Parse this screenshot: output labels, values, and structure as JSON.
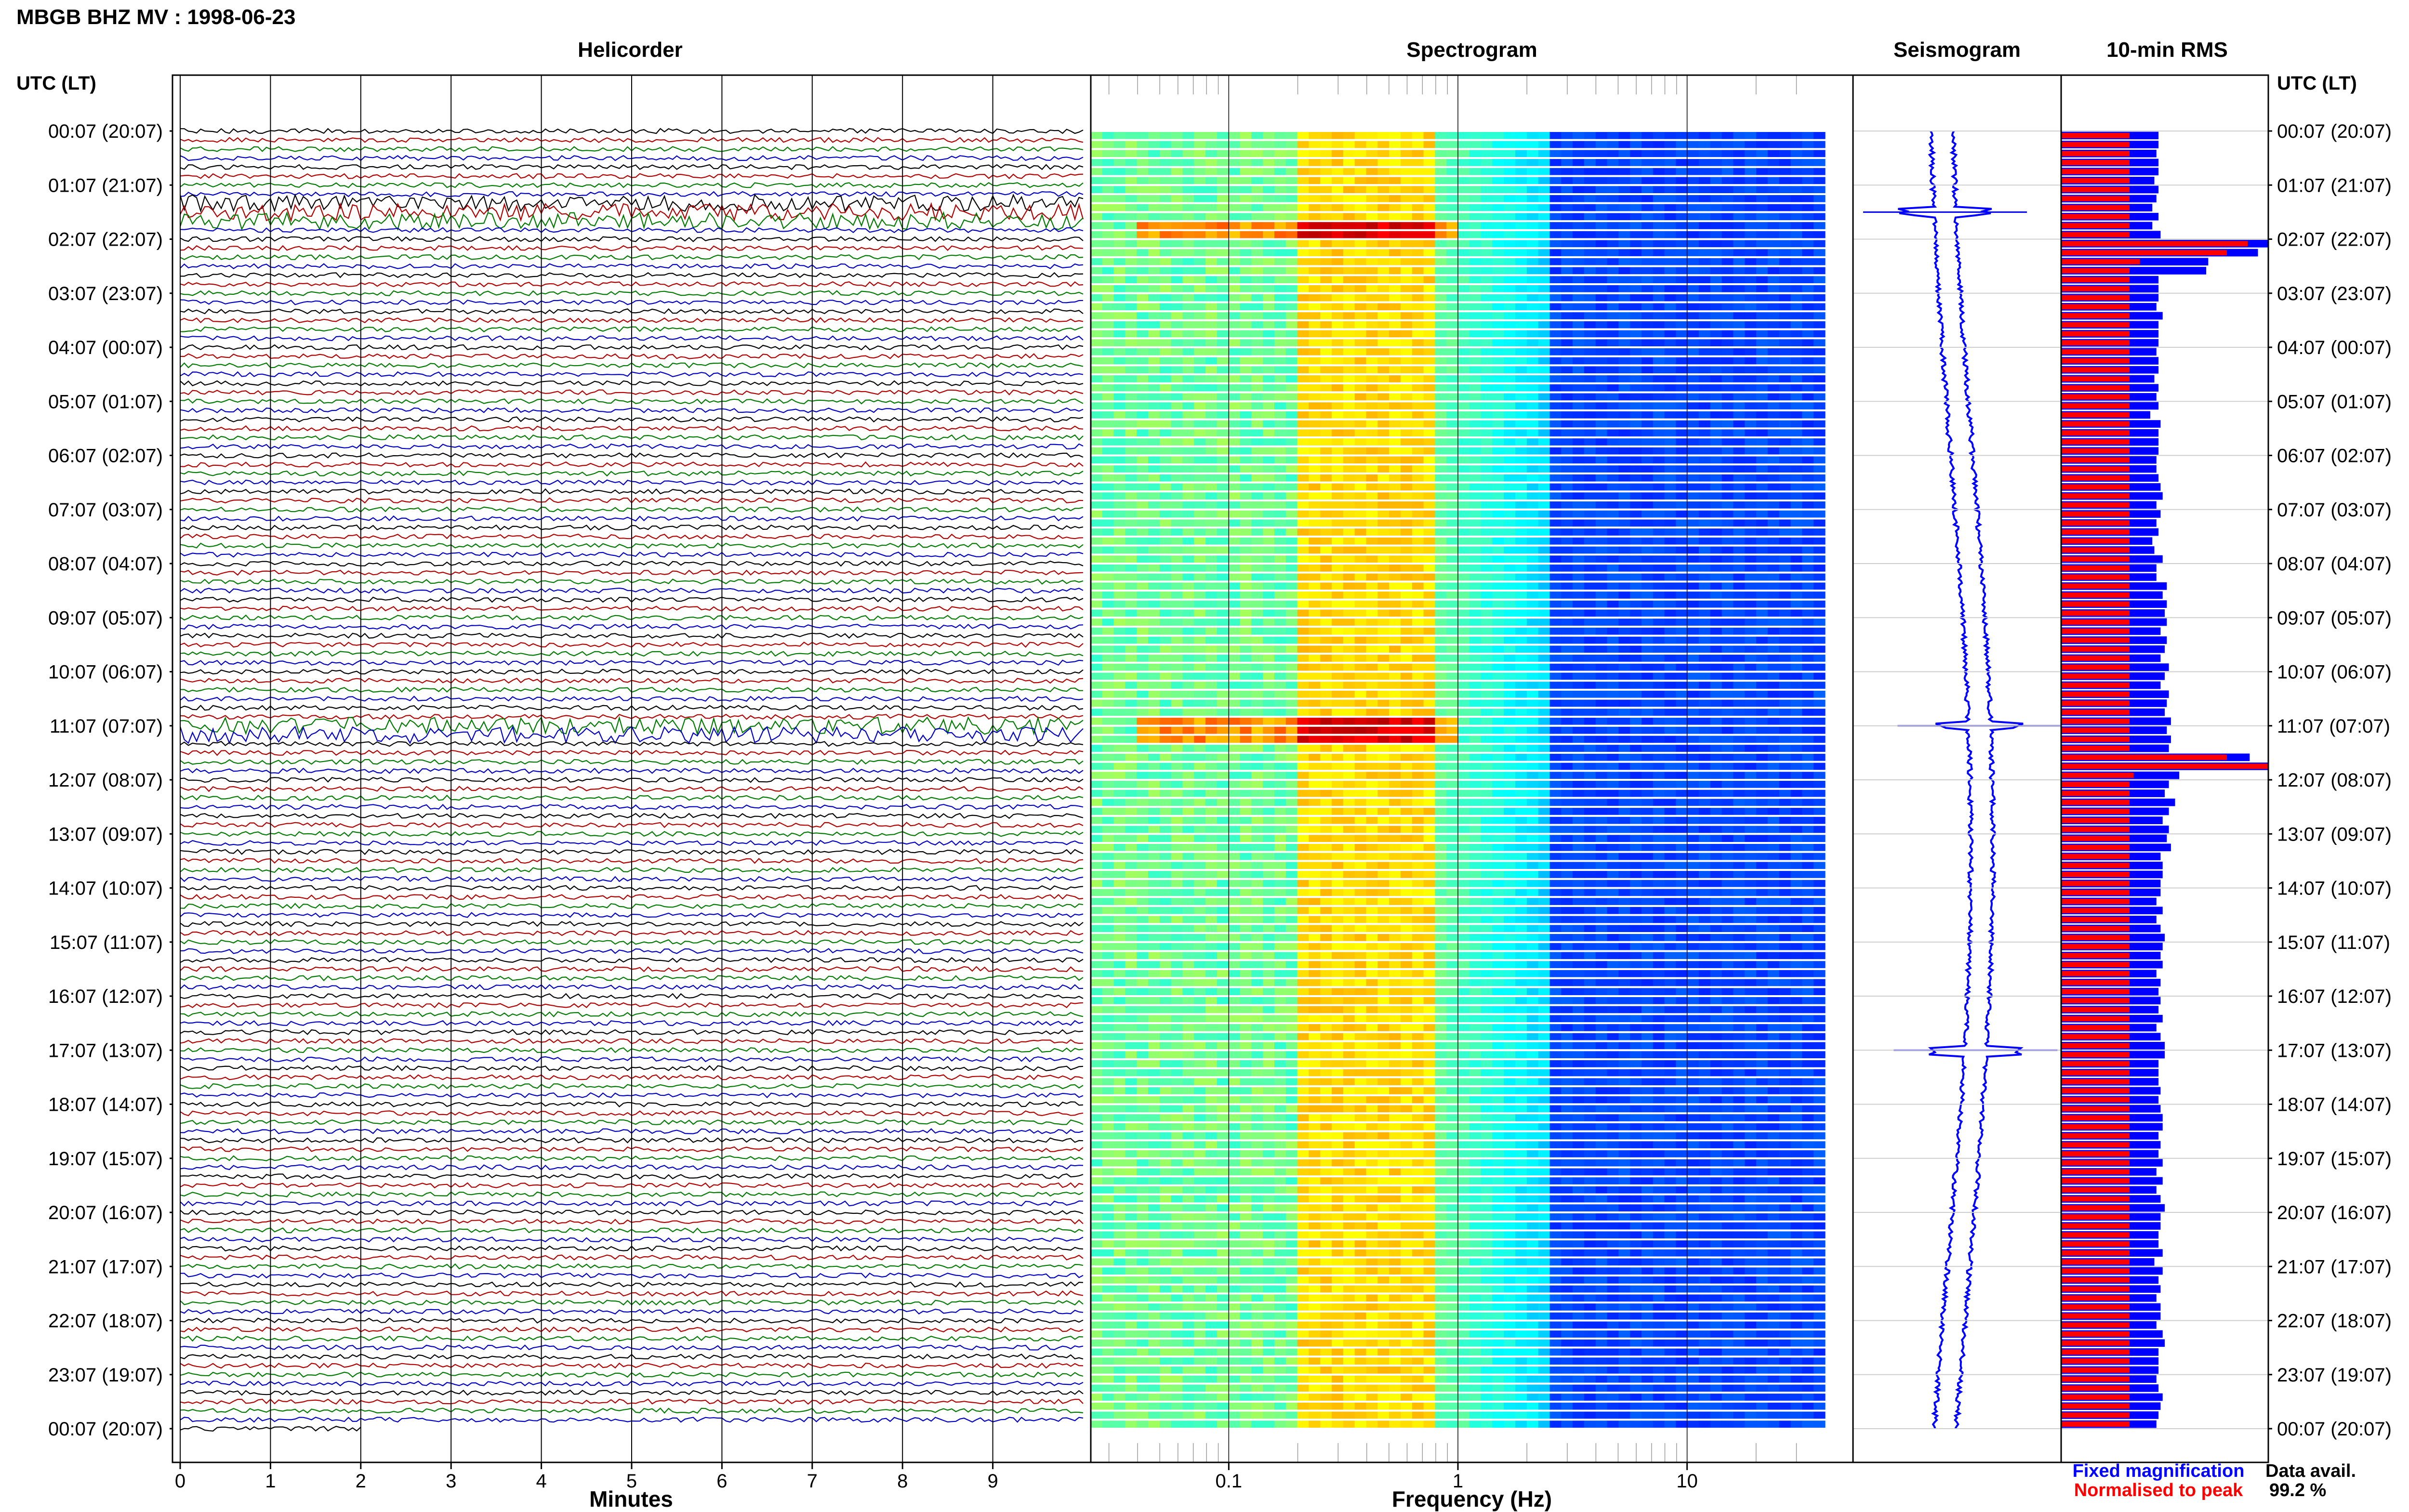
{
  "header": {
    "title": "MBGB BHZ MV : 1998-06-23"
  },
  "panels": {
    "helicorder": "Helicorder",
    "spectrogram": "Spectrogram",
    "seismogram": "Seismogram",
    "rms": "10-min RMS"
  },
  "axes": {
    "left_label": "UTC (LT)",
    "right_label": "UTC (LT)",
    "minutes_label": "Minutes",
    "frequency_label": "Frequency (Hz)"
  },
  "legend": {
    "fixed": "Fixed magnification",
    "normalised": "Normalised to peak",
    "fixed_color": "#0000ff",
    "normalised_color": "#ff0000"
  },
  "data_avail": {
    "label": "Data avail.",
    "value": "99.2 %"
  },
  "colors": {
    "trace_cycle": [
      "#000000",
      "#b00000",
      "#007a00",
      "#0000c0"
    ],
    "spectro_colormap": "jet"
  },
  "chart_data": [
    {
      "type": "line",
      "name": "helicorder",
      "title": "Helicorder",
      "xlabel": "Minutes",
      "xticks": [
        "0",
        "1",
        "2",
        "3",
        "4",
        "5",
        "6",
        "7",
        "8",
        "9"
      ],
      "xlim": [
        0,
        10
      ],
      "time_labels": [
        "00:07 (20:07)",
        "01:07 (21:07)",
        "02:07 (22:07)",
        "03:07 (23:07)",
        "04:07 (00:07)",
        "05:07 (01:07)",
        "06:07 (02:07)",
        "07:07 (03:07)",
        "08:07 (04:07)",
        "09:07 (05:07)",
        "10:07 (06:07)",
        "11:07 (07:07)",
        "12:07 (08:07)",
        "13:07 (09:07)",
        "14:07 (10:07)",
        "15:07 (11:07)",
        "16:07 (12:07)",
        "17:07 (13:07)",
        "18:07 (14:07)",
        "19:07 (15:07)",
        "20:07 (16:07)",
        "21:07 (17:07)",
        "22:07 (18:07)",
        "23:07 (19:07)",
        "00:07 (20:07)"
      ],
      "trace_minutes": 10,
      "traces_per_hour": 6,
      "event_windows": [
        {
          "hour": 1.33,
          "hour_end": 1.83,
          "amplitude": 3.5
        },
        {
          "hour": 11.0,
          "hour_end": 11.17,
          "amplitude": 3.5
        }
      ]
    },
    {
      "type": "heatmap",
      "name": "spectrogram",
      "title": "Spectrogram",
      "xlabel": "Frequency (Hz)",
      "xscale": "log",
      "xlim": [
        0.025,
        40
      ],
      "xticks": [
        "0.1",
        "1",
        "10"
      ],
      "energy_band_hz": [
        0.2,
        0.7
      ],
      "strong_rows_hour": [
        1.75,
        11.0
      ]
    },
    {
      "type": "line",
      "name": "seismogram",
      "title": "Seismogram",
      "spikes_hour": [
        1.5,
        11.0,
        17.0
      ]
    },
    {
      "type": "bar",
      "name": "rms",
      "title": "10-min RMS",
      "series": [
        {
          "name": "Fixed magnification",
          "color": "#0000ff"
        },
        {
          "name": "Normalised to peak",
          "color": "#ff0000"
        }
      ],
      "fixed_values": [
        0.47,
        0.47,
        0.46,
        0.47,
        0.47,
        0.45,
        0.47,
        0.46,
        0.44,
        0.47,
        0.44,
        0.48,
        1.0,
        0.95,
        0.71,
        0.7,
        0.47,
        0.47,
        0.47,
        0.46,
        0.49,
        0.47,
        0.47,
        0.47,
        0.46,
        0.47,
        0.47,
        0.45,
        0.47,
        0.46,
        0.47,
        0.43,
        0.48,
        0.47,
        0.47,
        0.47,
        0.46,
        0.46,
        0.47,
        0.48,
        0.49,
        0.46,
        0.48,
        0.46,
        0.47,
        0.44,
        0.45,
        0.49,
        0.46,
        0.46,
        0.51,
        0.49,
        0.51,
        0.5,
        0.51,
        0.48,
        0.51,
        0.5,
        0.48,
        0.52,
        0.5,
        0.48,
        0.52,
        0.51,
        0.5,
        0.53,
        0.51,
        0.53,
        0.52,
        0.91,
        1.0,
        0.57,
        0.52,
        0.5,
        0.55,
        0.52,
        0.49,
        0.52,
        0.51,
        0.53,
        0.48,
        0.49,
        0.49,
        0.48,
        0.48,
        0.46,
        0.49,
        0.46,
        0.48,
        0.5,
        0.49,
        0.48,
        0.49,
        0.46,
        0.48,
        0.47,
        0.48,
        0.47,
        0.49,
        0.46,
        0.48,
        0.5,
        0.5,
        0.47,
        0.47,
        0.47,
        0.48,
        0.47,
        0.48,
        0.49,
        0.49,
        0.47,
        0.48,
        0.47,
        0.49,
        0.46,
        0.49,
        0.46,
        0.48,
        0.5,
        0.48,
        0.48,
        0.47,
        0.47,
        0.49,
        0.45,
        0.49,
        0.47,
        0.48,
        0.46,
        0.48,
        0.48,
        0.46,
        0.49,
        0.5,
        0.47,
        0.47,
        0.47,
        0.46,
        0.47,
        0.49,
        0.48,
        0.47,
        0.46
      ],
      "normalised_values": [
        0.33,
        0.33,
        0.33,
        0.33,
        0.33,
        0.33,
        0.33,
        0.33,
        0.33,
        0.33,
        0.33,
        0.33,
        0.9,
        0.8,
        0.38,
        0.33,
        0.33,
        0.33,
        0.33,
        0.33,
        0.33,
        0.33,
        0.33,
        0.33,
        0.33,
        0.33,
        0.33,
        0.33,
        0.33,
        0.33,
        0.33,
        0.33,
        0.33,
        0.33,
        0.33,
        0.33,
        0.33,
        0.33,
        0.33,
        0.33,
        0.33,
        0.33,
        0.33,
        0.33,
        0.33,
        0.33,
        0.33,
        0.33,
        0.33,
        0.33,
        0.33,
        0.33,
        0.33,
        0.33,
        0.33,
        0.33,
        0.33,
        0.33,
        0.33,
        0.33,
        0.33,
        0.33,
        0.33,
        0.33,
        0.33,
        0.33,
        0.33,
        0.33,
        0.33,
        0.8,
        1.0,
        0.35,
        0.33,
        0.33,
        0.33,
        0.33,
        0.33,
        0.33,
        0.33,
        0.33,
        0.33,
        0.33,
        0.33,
        0.33,
        0.33,
        0.33,
        0.33,
        0.33,
        0.33,
        0.33,
        0.33,
        0.33,
        0.33,
        0.33,
        0.33,
        0.33,
        0.33,
        0.33,
        0.33,
        0.33,
        0.33,
        0.33,
        0.33,
        0.33,
        0.33,
        0.33,
        0.33,
        0.33,
        0.33,
        0.33,
        0.33,
        0.33,
        0.33,
        0.33,
        0.33,
        0.33,
        0.33,
        0.33,
        0.33,
        0.33,
        0.33,
        0.33,
        0.33,
        0.33,
        0.33,
        0.33,
        0.33,
        0.33,
        0.33,
        0.33,
        0.33,
        0.33,
        0.33,
        0.33,
        0.33,
        0.33,
        0.33,
        0.33,
        0.33,
        0.33,
        0.33,
        0.33,
        0.33,
        0.33
      ]
    }
  ]
}
